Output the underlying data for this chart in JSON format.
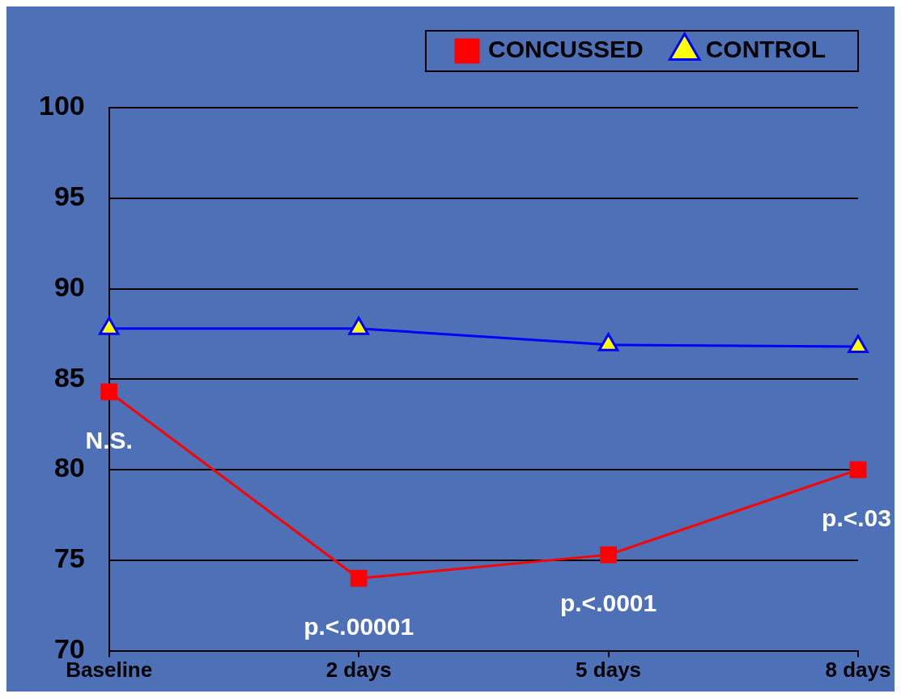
{
  "chart_data": {
    "type": "line",
    "categories": [
      "Baseline",
      "2 days",
      "5 days",
      "8 days"
    ],
    "series": [
      {
        "name": "CONCUSSED",
        "color": "#ff0000",
        "marker": "square",
        "values": [
          84.3,
          74.0,
          75.3,
          80.0
        ]
      },
      {
        "name": "CONTROL",
        "color": "#0000ff",
        "marker": "triangle",
        "values": [
          87.8,
          87.8,
          86.9,
          86.8
        ]
      }
    ],
    "ylim": [
      70,
      100
    ],
    "yticks": [
      70,
      75,
      80,
      85,
      90,
      95,
      100
    ],
    "grid": "y",
    "legend": "top right",
    "annotations": [
      {
        "text": "N.S.",
        "x": "Baseline",
        "y": 84.3
      },
      {
        "text": "p.<.00001",
        "x": "2 days",
        "y": 74.0
      },
      {
        "text": "p.<.0001",
        "x": "5 days",
        "y": 75.3
      },
      {
        "text": "p.<.03",
        "x": "8 days",
        "y": 80.0
      }
    ]
  }
}
